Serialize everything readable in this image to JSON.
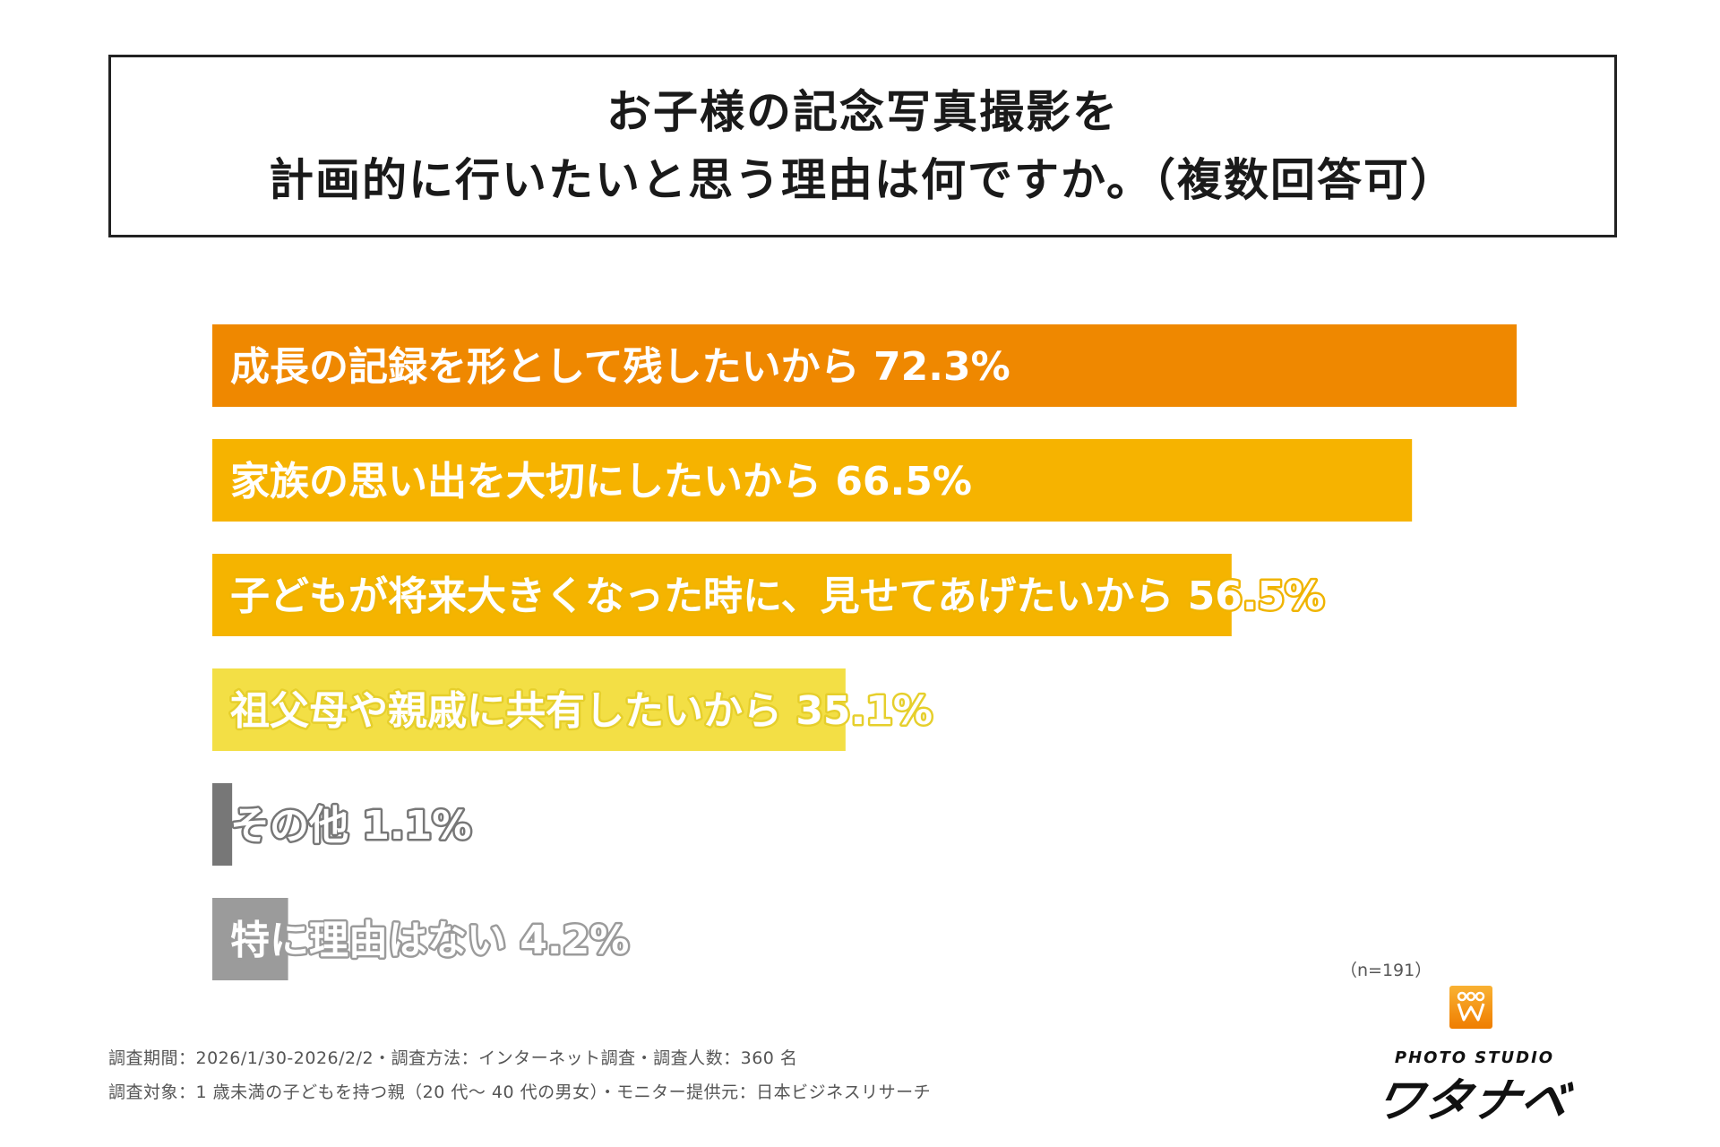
{
  "title": {
    "line1": "お子様の記念写真撮影を",
    "line2": "計画的に行いたいと思う理由は何ですか。（複数回答可）"
  },
  "chart_data": {
    "type": "bar",
    "orientation": "horizontal",
    "categories": [
      "成長の記録を形として残したいから",
      "家族の思い出を大切にしたいから",
      "子どもが将来大きくなった時に、見せてあげたいから",
      "祖父母や親戚に共有したいから",
      "その他",
      "特に理由はない"
    ],
    "values": [
      72.3,
      66.5,
      56.5,
      35.1,
      1.1,
      4.2
    ],
    "value_labels": [
      "72.3%",
      "66.5%",
      "56.5%",
      "35.1%",
      "1.1%",
      "4.2%"
    ],
    "colors": [
      "#ef8800",
      "#f6b300",
      "#f5b400",
      "#f3df45",
      "#777777",
      "#9b9b9b"
    ],
    "label_outline_colors": [
      "#ef8800",
      "#f6b300",
      "#f0b400",
      "#e6cf2c",
      "#777777",
      "#9b9b9b"
    ],
    "xlim": [
      0,
      72.3
    ],
    "grid": false,
    "legend": "none"
  },
  "sample_size": "（n=191）",
  "footer": {
    "line1": "調査期間：2026/1/30-2026/2/2・調査方法：インターネット調査・調査人数：360 名",
    "line2": "調査対象：1 歳未満の子どもを持つ親（20 代～ 40 代の男女）・モニター提供元：日本ビジネスリサーチ"
  },
  "logo": {
    "subtitle": "PHOTO STUDIO",
    "name": "ワタナベ",
    "icon": "crown-w-logo-icon"
  }
}
